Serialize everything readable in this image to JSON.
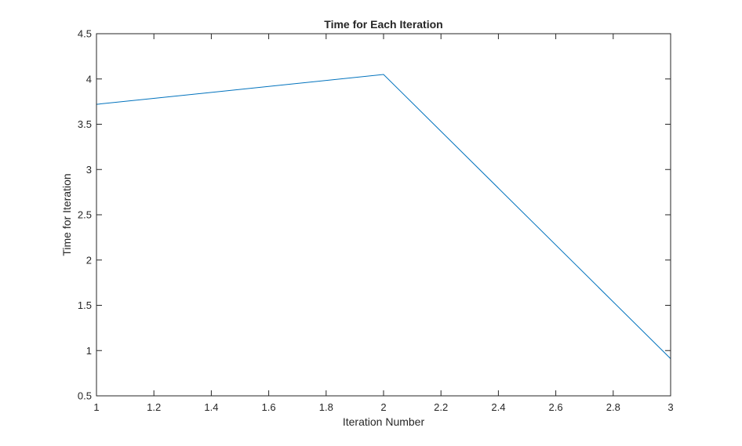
{
  "chart_data": {
    "type": "line",
    "title": "Time for Each Iteration",
    "xlabel": "Iteration Number",
    "ylabel": "Time for Iteration",
    "xlim": [
      1,
      3
    ],
    "ylim": [
      0.5,
      4.5
    ],
    "x_ticks": [
      "1",
      "1.2",
      "1.4",
      "1.6",
      "1.8",
      "2",
      "2.2",
      "2.4",
      "2.6",
      "2.8",
      "3"
    ],
    "y_ticks": [
      "0.5",
      "1",
      "1.5",
      "2",
      "2.5",
      "3",
      "3.5",
      "4",
      "4.5"
    ],
    "grid": false,
    "series": [
      {
        "x": [
          1,
          2,
          3
        ],
        "y": [
          3.72,
          4.05,
          0.91
        ],
        "color": "#0072bd"
      }
    ]
  },
  "colors": {
    "axis": "#262626",
    "background": "#ffffff",
    "series": "#0072bd"
  }
}
